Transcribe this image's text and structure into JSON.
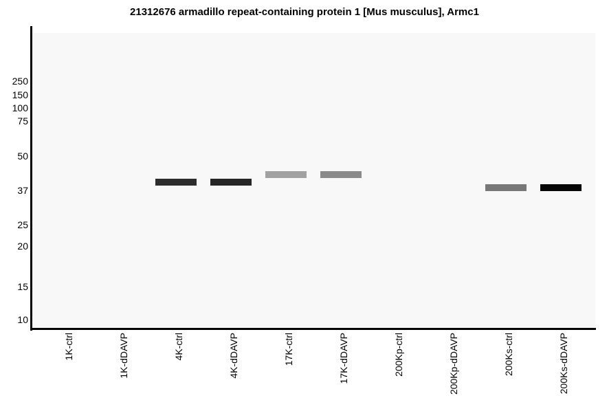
{
  "title": "21312676 armadillo repeat-containing protein 1 [Mus musculus], Armc1",
  "chart_data": {
    "type": "gel-blot",
    "title": "21312676 armadillo repeat-containing protein 1 [Mus musculus], Armc1",
    "y_axis": {
      "unit": "kDa",
      "scale": "nonlinear gel-migration (molecular weight marker ladder)",
      "tick_values": [
        250,
        150,
        100,
        75,
        50,
        37,
        25,
        20,
        15,
        10
      ],
      "tick_labels": [
        "250",
        "150",
        "100",
        "75",
        "50",
        "37",
        "25",
        "20",
        "15",
        "10"
      ]
    },
    "x_axis": {
      "lanes": [
        "1K-ctrl",
        "1K-dDAVP",
        "4K-ctrl",
        "4K-dDAVP",
        "17K-ctrl",
        "17K-dDAVP",
        "200Kp-ctrl",
        "200Kp-dDAVP",
        "200Ks-ctrl",
        "200Ks-dDAVP"
      ]
    },
    "bands": [
      {
        "lane": "4K-ctrl",
        "mw_kda": 40,
        "intensity": 0.82,
        "color": "#2d2d2d"
      },
      {
        "lane": "4K-dDAVP",
        "mw_kda": 40,
        "intensity": 0.85,
        "color": "#262626"
      },
      {
        "lane": "17K-ctrl",
        "mw_kda": 43,
        "intensity": 0.37,
        "color": "#a1a1a1"
      },
      {
        "lane": "17K-dDAVP",
        "mw_kda": 43,
        "intensity": 0.46,
        "color": "#8a8a8a"
      },
      {
        "lane": "200Ks-ctrl",
        "mw_kda": 38,
        "intensity": 0.53,
        "color": "#787878"
      },
      {
        "lane": "200Ks-dDAVP",
        "mw_kda": 38,
        "intensity": 0.97,
        "color": "#060606"
      }
    ],
    "lanes_without_bands": [
      "1K-ctrl",
      "1K-dDAVP",
      "200Kp-ctrl",
      "200Kp-dDAVP"
    ],
    "layout_hints": {
      "legend": "none",
      "grid": false,
      "x_tick_label_rotation_deg": 90
    }
  },
  "colors": {
    "plot_background": "#f8f8f8",
    "axis": "#000000",
    "text": "#000000"
  }
}
